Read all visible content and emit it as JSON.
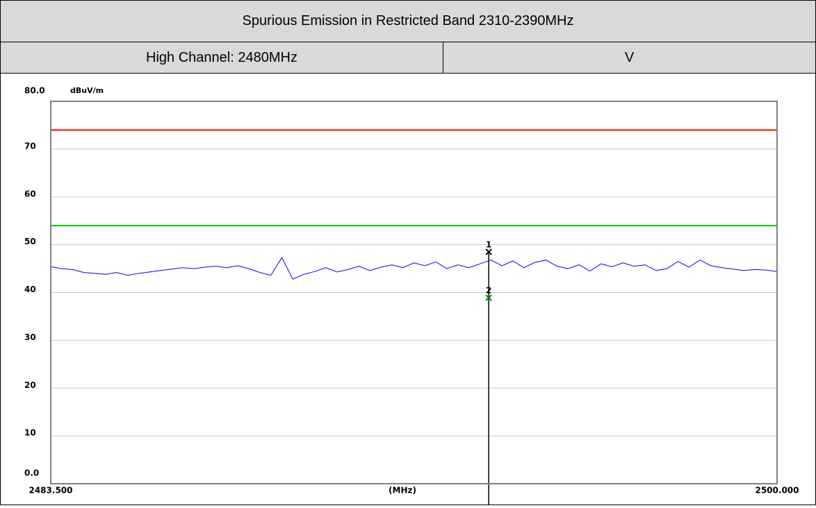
{
  "header": {
    "title": "Spurious Emission in Restricted Band 2310-2390MHz",
    "channel": "High Channel: 2480MHz",
    "polarization": "V"
  },
  "chart_data": {
    "type": "line",
    "y_unit": "dBuV/m",
    "x_label": "(MHz)",
    "xlim": [
      2483.5,
      2500
    ],
    "xticks": [
      {
        "value": 2483.5,
        "label": "2483.500"
      },
      {
        "value": 2500,
        "label": "2500.000"
      }
    ],
    "ylim": [
      0,
      80
    ],
    "yticks": [
      {
        "value": 0,
        "label": "0.0"
      },
      10,
      20,
      30,
      40,
      50,
      60,
      70,
      {
        "value": 80,
        "label": "80.0"
      }
    ],
    "grid": true,
    "x": [
      2483.5,
      2483.75,
      2484,
      2484.25,
      2484.5,
      2484.75,
      2485,
      2485.25,
      2485.5,
      2485.75,
      2486,
      2486.25,
      2486.5,
      2486.75,
      2487,
      2487.25,
      2487.5,
      2487.75,
      2488,
      2488.25,
      2488.5,
      2488.75,
      2489,
      2489.25,
      2489.5,
      2489.75,
      2490,
      2490.25,
      2490.5,
      2490.75,
      2491,
      2491.25,
      2491.5,
      2491.75,
      2492,
      2492.25,
      2492.5,
      2492.75,
      2493,
      2493.25,
      2493.5,
      2493.75,
      2494,
      2494.25,
      2494.5,
      2494.75,
      2495,
      2495.25,
      2495.5,
      2495.75,
      2496,
      2496.25,
      2496.5,
      2496.75,
      2497,
      2497.25,
      2497.5,
      2497.75,
      2498,
      2498.25,
      2498.5,
      2498.75,
      2499,
      2499.25,
      2499.5,
      2499.75,
      2500
    ],
    "series": [
      {
        "color": "#0000ff",
        "values": [
          45.4,
          45.0,
          44.8,
          44.2,
          44.0,
          43.8,
          44.2,
          43.6,
          44.0,
          44.3,
          44.6,
          44.9,
          45.2,
          45.0,
          45.3,
          45.5,
          45.2,
          45.6,
          45.0,
          44.2,
          43.6,
          47.3,
          42.8,
          43.8,
          44.4,
          45.2,
          44.3,
          44.8,
          45.5,
          44.6,
          45.3,
          45.8,
          45.2,
          46.2,
          45.6,
          46.4,
          45.0,
          45.8,
          45.2,
          46.0,
          46.8,
          45.6,
          46.6,
          45.2,
          46.3,
          46.8,
          45.5,
          45.0,
          45.8,
          44.5,
          46.0,
          45.4,
          46.2,
          45.5,
          45.8,
          44.6,
          45.0,
          46.5,
          45.3,
          46.8,
          45.6,
          45.2,
          44.9,
          44.6,
          44.8,
          44.7,
          44.4
        ]
      }
    ],
    "limits": [
      {
        "value": 74,
        "color": "#ff0000"
      },
      {
        "value": 54,
        "color": "#00cc00"
      }
    ],
    "markers": [
      {
        "label": "1",
        "x": 2493.45,
        "y": 48.5,
        "color": "#000000"
      },
      {
        "label": "2",
        "x": 2493.45,
        "y": 38.9,
        "color": "#008000"
      }
    ]
  }
}
